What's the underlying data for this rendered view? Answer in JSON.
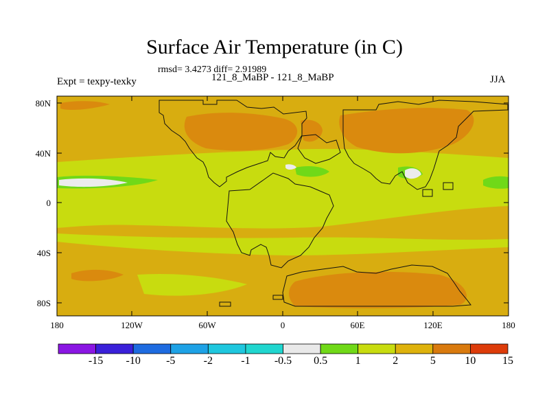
{
  "title": "Surface Air Temperature (in C)",
  "stats": "rmsd= 3.4273  diff= 2.91989",
  "subtitle": "121_8_MaBP - 121_8_MaBP",
  "left_label": "Expt = texpy-texky",
  "right_label": "JJA",
  "lat_ticks": [
    "80N",
    "40N",
    "0",
    "40S",
    "80S"
  ],
  "lon_ticks": [
    "180",
    "120W",
    "60W",
    "0",
    "60E",
    "120E",
    "180"
  ],
  "colorbar": {
    "labels": [
      "-15",
      "-10",
      "-5",
      "-2",
      "-1",
      "-0.5",
      "0.5",
      "1",
      "2",
      "5",
      "10",
      "15"
    ],
    "colors": [
      "#8a16e3",
      "#3a20d9",
      "#1e6be0",
      "#1ea2e6",
      "#1fc7de",
      "#20d6cf",
      "#e9e9e9",
      "#70d918",
      "#c8dc0f",
      "#deb20c",
      "#d97a0e",
      "#dd3c0a"
    ]
  },
  "field_colors": {
    "background": "#d8ad10",
    "warm": "#da8a0e",
    "mild": "#c8dc0f",
    "green": "#70d918",
    "neutral": "#ececec"
  }
}
